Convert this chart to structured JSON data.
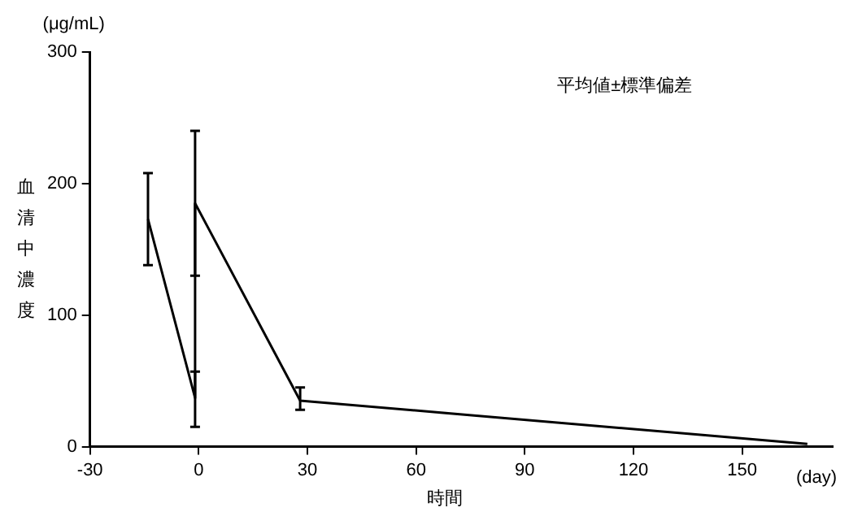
{
  "chart_data": {
    "type": "line",
    "xlabel": "時間",
    "ylabel": "血清中濃度",
    "annotations": [
      "(μg/mL)",
      "(day)",
      "平均値±標準偏差"
    ],
    "x": [
      -14,
      -1,
      -1,
      28,
      168
    ],
    "series": [
      {
        "color": "#000000",
        "values": [
          173,
          37,
          185,
          35,
          2
        ],
        "errors": [
          [
            138,
            208
          ],
          [
            15,
            57
          ],
          [
            130,
            240
          ],
          [
            28,
            45
          ],
          null
        ]
      }
    ],
    "xlim": [
      -30,
      175
    ],
    "xticks": [
      -30,
      0,
      30,
      60,
      90,
      120,
      150
    ],
    "ylim": [
      0,
      300
    ],
    "yticks": [
      0,
      100,
      200,
      300
    ],
    "grid": false,
    "legend": false,
    "marker": "none",
    "line_style": "solid"
  }
}
